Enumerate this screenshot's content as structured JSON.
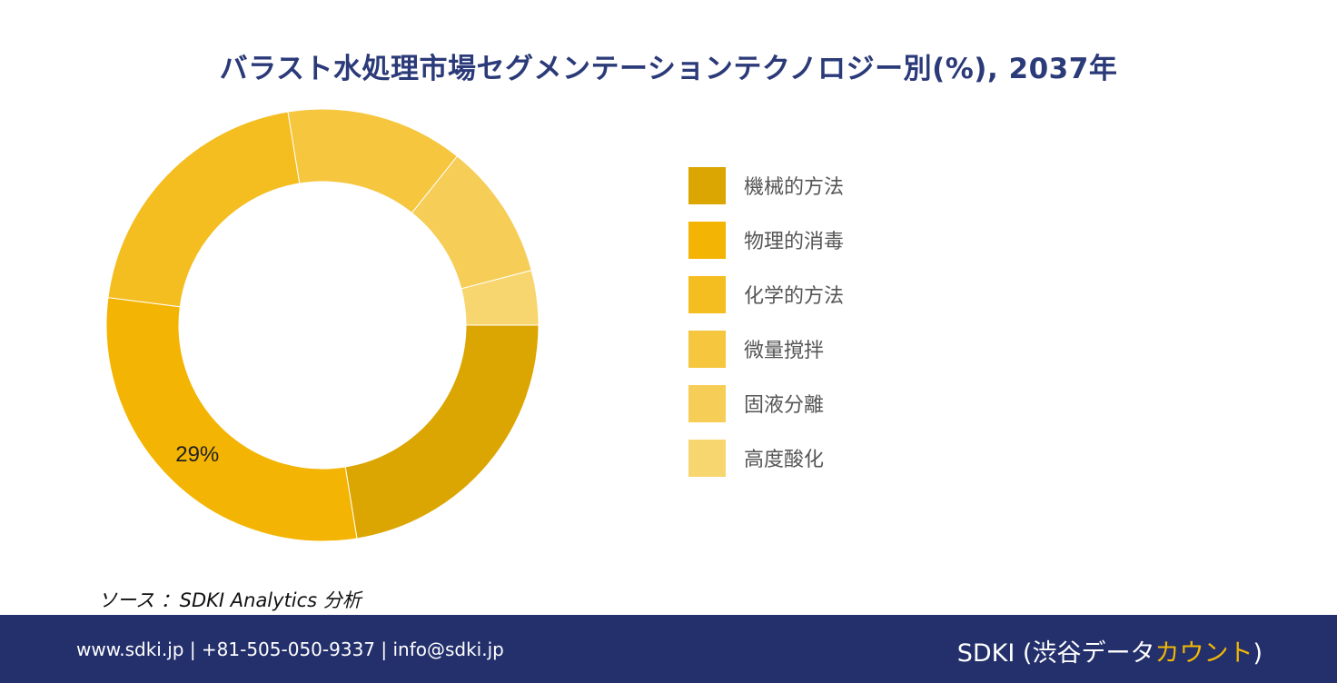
{
  "title": "バラスト水処理市場セグメンテーションテクノロジー別(%), 2037年",
  "chart_data": {
    "type": "pie",
    "donut": true,
    "categories": [
      "機械的方法",
      "物理的消毒",
      "化学的方法",
      "微量撹拌",
      "固液分離",
      "高度酸化"
    ],
    "values": [
      22,
      29,
      20,
      13,
      10,
      4
    ],
    "colors": [
      "#dba502",
      "#f4b403",
      "#f4bd20",
      "#f5c63e",
      "#f6cd56",
      "#f7d66f"
    ],
    "data_labels": [
      {
        "category": "物理的消毒",
        "text": "29%"
      }
    ],
    "legend_position": "right"
  },
  "source": "ソース ：SDKI Analytics 分析",
  "footer": {
    "contact": "www.sdki.jp | +81-505-050-9337 | info@sdki.jp",
    "brand_main": "SDKI (渋谷データ",
    "brand_accent": "カウント",
    "brand_close": ")"
  }
}
